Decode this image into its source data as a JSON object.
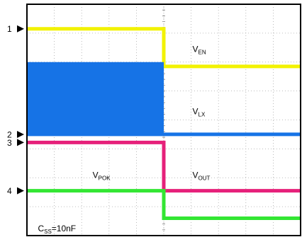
{
  "chart_data": {
    "type": "line",
    "title": "",
    "xlabel": "",
    "ylabel": "",
    "grid": true,
    "x_divisions": 10,
    "y_divisions": 8,
    "xlim": [
      0,
      10
    ],
    "ylim": [
      0,
      8
    ],
    "trigger_div": 5,
    "markers": [
      {
        "label": "1",
        "level": 7.15
      },
      {
        "label": "2",
        "level": 3.5
      },
      {
        "label": "3",
        "level": 3.22
      },
      {
        "label": "4",
        "level": 1.55
      }
    ],
    "annotations": [
      {
        "text": "V",
        "sub": "EN",
        "x": 6.05,
        "y": 6.35
      },
      {
        "text": "V",
        "sub": "LX",
        "x": 6.05,
        "y": 4.2
      },
      {
        "text": "V",
        "sub": "POK",
        "x": 2.4,
        "y": 2.0
      },
      {
        "text": "V",
        "sub": "OUT",
        "x": 6.05,
        "y": 2.0
      },
      {
        "text": "C",
        "sub": "SS",
        "suffix": "=10nF",
        "x": 0.4,
        "y": 0.15
      }
    ],
    "series": [
      {
        "color": "#f2f200",
        "x": [
          0,
          5,
          5,
          10
        ],
        "y": [
          7.15,
          7.15,
          5.85,
          5.85
        ]
      },
      {
        "color": "#1673e6",
        "x": [
          0,
          5,
          5,
          10
        ],
        "y": [
          3.5,
          3.5,
          3.5,
          3.5
        ],
        "band": {
          "x": [
            0,
            5
          ],
          "y": [
            3.5,
            6.0
          ]
        }
      },
      {
        "color": "#e6207a",
        "x": [
          0,
          5,
          5,
          10
        ],
        "y": [
          3.22,
          3.22,
          1.55,
          1.55
        ]
      },
      {
        "color": "#33e633",
        "x": [
          0,
          5,
          5,
          10
        ],
        "y": [
          1.55,
          1.55,
          0.6,
          0.6
        ]
      }
    ]
  }
}
